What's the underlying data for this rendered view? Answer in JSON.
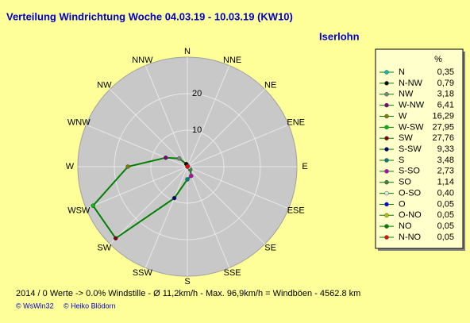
{
  "chart_data": {
    "type": "radar",
    "title": "Verteilung Windrichtung   Woche 04.03.19 - 10.03.19 (KW10)",
    "subtitle": "Iserlohn",
    "categories": [
      "N",
      "NNE",
      "NE",
      "ENE",
      "E",
      "ESE",
      "SE",
      "SSE",
      "S",
      "SSW",
      "SW",
      "WSW",
      "W",
      "WNW",
      "NW",
      "NNW"
    ],
    "rlim": [
      0,
      30
    ],
    "rticks": [
      10,
      20
    ],
    "line_color": "#008000",
    "legend_title": "%",
    "directions": [
      "N",
      "N-NW",
      "NW",
      "W-NW",
      "W",
      "W-SW",
      "SW",
      "S-SW",
      "S",
      "S-SO",
      "SO",
      "O-SO",
      "O",
      "O-NO",
      "NO",
      "N-NO"
    ],
    "colors": [
      "#00c0c0",
      "#000000",
      "#808080",
      "#800080",
      "#808000",
      "#00c000",
      "#800000",
      "#000080",
      "#008080",
      "#c000c0",
      "#408040",
      "#e8e8e8",
      "#0000ff",
      "#c0c000",
      "#008000",
      "#ff0000"
    ],
    "values": [
      0.35,
      0.79,
      3.18,
      6.41,
      16.29,
      27.95,
      27.76,
      9.33,
      3.48,
      2.73,
      1.14,
      0.4,
      0.05,
      0.05,
      0.05,
      0.05
    ],
    "value_labels": [
      "0,35",
      "0,79",
      "3,18",
      "6,41",
      "16,29",
      "27,95",
      "27,76",
      "9,33",
      "3,48",
      "2,73",
      "1,14",
      "0,40",
      "0,05",
      "0,05",
      "0,05",
      "0,05"
    ],
    "footer": "2014 / 0 Werte  -> 0.0% Windstille   -   Ø 11,2km/h   -  Max. 96,9km/h = Windböen   -    4562.8 km",
    "credits": [
      "© WsWin32",
      "© Heiko Blödorn"
    ]
  }
}
